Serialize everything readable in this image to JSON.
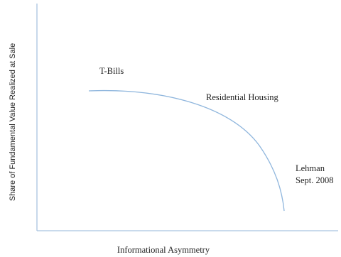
{
  "axes": {
    "x_label": "Informational Asymmetry",
    "y_label": "Share of Fundamental Value Realized at Sale"
  },
  "annotations": [
    "T-Bills",
    "Residential Housing",
    "Lehman",
    "Sept. 2008"
  ]
}
